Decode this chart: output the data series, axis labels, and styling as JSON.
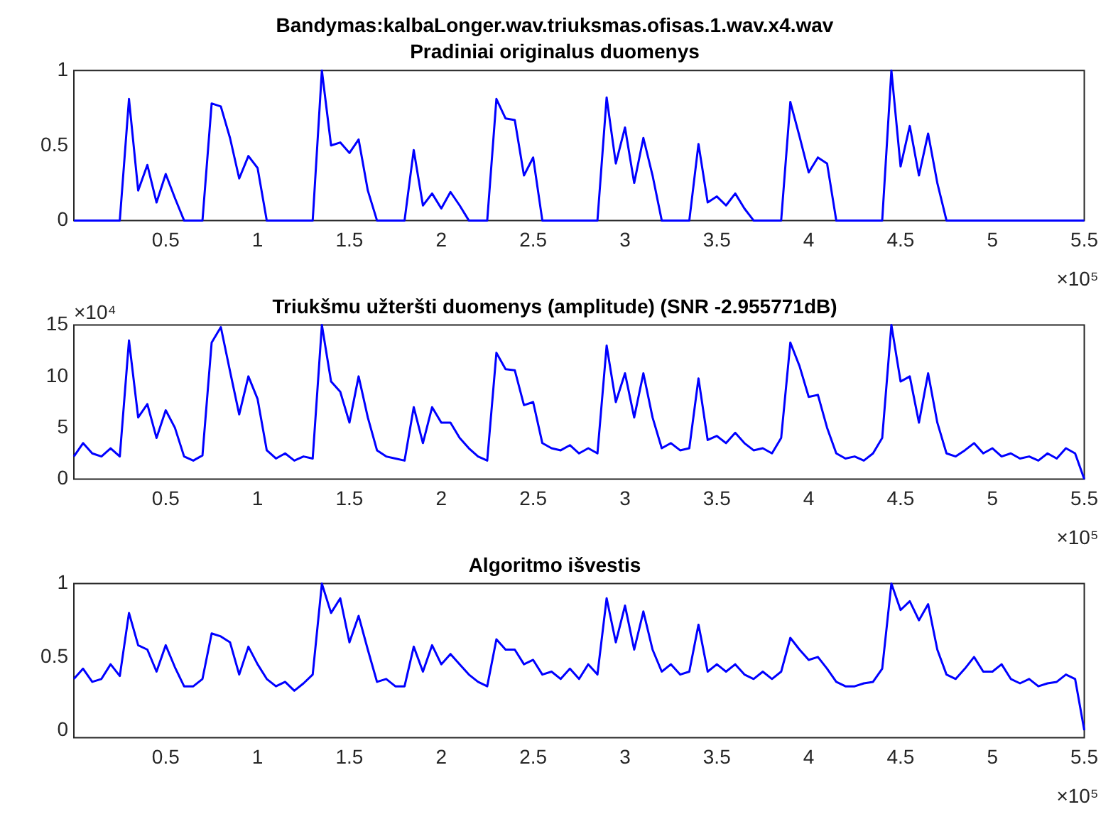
{
  "chart_data": [
    {
      "type": "line",
      "title": "Bandymas:kalbaLonger.wav.triuksmas.ofisas.1.wav.x4.wav",
      "subtitle": "Pradiniai originalus duomenys",
      "annotations": [
        "×10⁵"
      ],
      "x": [
        0,
        0.05,
        0.1,
        0.15,
        0.2,
        0.25,
        0.3,
        0.35,
        0.4,
        0.45,
        0.5,
        0.55,
        0.6,
        0.65,
        0.7,
        0.75,
        0.8,
        0.85,
        0.9,
        0.95,
        1,
        1.05,
        1.1,
        1.15,
        1.2,
        1.25,
        1.3,
        1.35,
        1.4,
        1.45,
        1.5,
        1.55,
        1.6,
        1.65,
        1.7,
        1.75,
        1.8,
        1.85,
        1.9,
        1.95,
        2,
        2.05,
        2.1,
        2.15,
        2.2,
        2.25,
        2.3,
        2.35,
        2.4,
        2.45,
        2.5,
        2.55,
        2.6,
        2.65,
        2.7,
        2.75,
        2.8,
        2.85,
        2.9,
        2.95,
        3,
        3.05,
        3.1,
        3.15,
        3.2,
        3.25,
        3.3,
        3.35,
        3.4,
        3.45,
        3.5,
        3.55,
        3.6,
        3.65,
        3.7,
        3.75,
        3.8,
        3.85,
        3.9,
        3.95,
        4,
        4.05,
        4.1,
        4.15,
        4.2,
        4.25,
        4.3,
        4.35,
        4.4,
        4.45,
        4.5,
        4.55,
        4.6,
        4.65,
        4.7,
        4.75,
        4.8,
        4.85,
        4.9,
        4.95,
        5,
        5.05,
        5.1,
        5.15,
        5.2,
        5.25,
        5.3,
        5.35,
        5.4,
        5.45,
        5.5
      ],
      "series": [
        {
          "color": "#0000ff",
          "values": [
            0,
            0,
            0,
            0,
            0,
            0,
            0.81,
            0.2,
            0.37,
            0.12,
            0.31,
            0.15,
            0,
            0,
            0,
            0.78,
            0.76,
            0.55,
            0.28,
            0.43,
            0.35,
            0,
            0,
            0,
            0,
            0,
            0,
            1,
            0.5,
            0.52,
            0.45,
            0.54,
            0.2,
            0,
            0,
            0,
            0,
            0.47,
            0.1,
            0.18,
            0.08,
            0.19,
            0.1,
            0,
            0,
            0,
            0.81,
            0.68,
            0.67,
            0.3,
            0.42,
            0,
            0,
            0,
            0,
            0,
            0,
            0,
            0.82,
            0.38,
            0.62,
            0.25,
            0.55,
            0.3,
            0,
            0,
            0,
            0,
            0.51,
            0.12,
            0.16,
            0.1,
            0.18,
            0.08,
            0,
            0,
            0,
            0,
            0.79,
            0.56,
            0.32,
            0.42,
            0.38,
            0,
            0,
            0,
            0,
            0,
            0,
            1,
            0.36,
            0.63,
            0.3,
            0.58,
            0.25,
            0,
            0,
            0,
            0,
            0,
            0,
            0,
            0,
            0,
            0,
            0,
            0,
            0,
            0,
            0,
            0
          ]
        }
      ],
      "xlim": [
        0,
        5.5
      ],
      "xticks": [
        0.5,
        1,
        1.5,
        2,
        2.5,
        3,
        3.5,
        4,
        4.5,
        5,
        5.5
      ],
      "ylim": [
        0,
        1
      ],
      "yticks": [
        0,
        0.5,
        1
      ]
    },
    {
      "type": "line",
      "title": "Triukšmu užteršti duomenys (amplitude) (SNR -2.955771dB)",
      "annotations": [
        "×10⁴",
        "×10⁵"
      ],
      "x": [
        0,
        0.05,
        0.1,
        0.15,
        0.2,
        0.25,
        0.3,
        0.35,
        0.4,
        0.45,
        0.5,
        0.55,
        0.6,
        0.65,
        0.7,
        0.75,
        0.8,
        0.85,
        0.9,
        0.95,
        1,
        1.05,
        1.1,
        1.15,
        1.2,
        1.25,
        1.3,
        1.35,
        1.4,
        1.45,
        1.5,
        1.55,
        1.6,
        1.65,
        1.7,
        1.75,
        1.8,
        1.85,
        1.9,
        1.95,
        2,
        2.05,
        2.1,
        2.15,
        2.2,
        2.25,
        2.3,
        2.35,
        2.4,
        2.45,
        2.5,
        2.55,
        2.6,
        2.65,
        2.7,
        2.75,
        2.8,
        2.85,
        2.9,
        2.95,
        3,
        3.05,
        3.1,
        3.15,
        3.2,
        3.25,
        3.3,
        3.35,
        3.4,
        3.45,
        3.5,
        3.55,
        3.6,
        3.65,
        3.7,
        3.75,
        3.8,
        3.85,
        3.9,
        3.95,
        4,
        4.05,
        4.1,
        4.15,
        4.2,
        4.25,
        4.3,
        4.35,
        4.4,
        4.45,
        4.5,
        4.55,
        4.6,
        4.65,
        4.7,
        4.75,
        4.8,
        4.85,
        4.9,
        4.95,
        5,
        5.05,
        5.1,
        5.15,
        5.2,
        5.25,
        5.3,
        5.35,
        5.4,
        5.45,
        5.5
      ],
      "series": [
        {
          "color": "#0000ff",
          "values": [
            2.2,
            3.5,
            2.5,
            2.2,
            3,
            2.2,
            13.5,
            6,
            7.3,
            4,
            6.7,
            5,
            2.2,
            1.8,
            2.3,
            13.3,
            14.8,
            10.5,
            6.3,
            10,
            7.8,
            2.8,
            2,
            2.5,
            1.8,
            2.2,
            2,
            15,
            9.5,
            8.5,
            5.5,
            10,
            6,
            2.8,
            2.2,
            2,
            1.8,
            7,
            3.5,
            7,
            5.5,
            5.5,
            4,
            3,
            2.2,
            1.8,
            12.3,
            10.7,
            10.6,
            7.2,
            7.5,
            3.5,
            3,
            2.8,
            3.3,
            2.5,
            3,
            2.5,
            13,
            7.5,
            10.3,
            6,
            10.3,
            6,
            3,
            3.5,
            2.8,
            3,
            9.8,
            3.8,
            4.2,
            3.5,
            4.5,
            3.5,
            2.8,
            3,
            2.5,
            4,
            13.3,
            11,
            8,
            8.2,
            5,
            2.5,
            2,
            2.2,
            1.8,
            2.5,
            4,
            15,
            9.5,
            10,
            5.5,
            10.3,
            5.5,
            2.5,
            2.2,
            2.8,
            3.5,
            2.5,
            3,
            2.2,
            2.5,
            2,
            2.2,
            1.8,
            2.5,
            2,
            3,
            2.5,
            0
          ]
        }
      ],
      "xlim": [
        0,
        5.5
      ],
      "xticks": [
        0.5,
        1,
        1.5,
        2,
        2.5,
        3,
        3.5,
        4,
        4.5,
        5,
        5.5
      ],
      "ylim": [
        0,
        15
      ],
      "yticks": [
        0,
        5,
        10,
        15
      ]
    },
    {
      "type": "line",
      "title": "Algoritmo išvestis",
      "annotations": [
        "×10⁵"
      ],
      "x": [
        0,
        0.05,
        0.1,
        0.15,
        0.2,
        0.25,
        0.3,
        0.35,
        0.4,
        0.45,
        0.5,
        0.55,
        0.6,
        0.65,
        0.7,
        0.75,
        0.8,
        0.85,
        0.9,
        0.95,
        1,
        1.05,
        1.1,
        1.15,
        1.2,
        1.25,
        1.3,
        1.35,
        1.4,
        1.45,
        1.5,
        1.55,
        1.6,
        1.65,
        1.7,
        1.75,
        1.8,
        1.85,
        1.9,
        1.95,
        2,
        2.05,
        2.1,
        2.15,
        2.2,
        2.25,
        2.3,
        2.35,
        2.4,
        2.45,
        2.5,
        2.55,
        2.6,
        2.65,
        2.7,
        2.75,
        2.8,
        2.85,
        2.9,
        2.95,
        3,
        3.05,
        3.1,
        3.15,
        3.2,
        3.25,
        3.3,
        3.35,
        3.4,
        3.45,
        3.5,
        3.55,
        3.6,
        3.65,
        3.7,
        3.75,
        3.8,
        3.85,
        3.9,
        3.95,
        4,
        4.05,
        4.1,
        4.15,
        4.2,
        4.25,
        4.3,
        4.35,
        4.4,
        4.45,
        4.5,
        4.55,
        4.6,
        4.65,
        4.7,
        4.75,
        4.8,
        4.85,
        4.9,
        4.95,
        5,
        5.05,
        5.1,
        5.15,
        5.2,
        5.25,
        5.3,
        5.35,
        5.4,
        5.45,
        5.5
      ],
      "series": [
        {
          "color": "#0000ff",
          "values": [
            0.35,
            0.42,
            0.33,
            0.35,
            0.45,
            0.37,
            0.8,
            0.58,
            0.55,
            0.4,
            0.58,
            0.43,
            0.3,
            0.3,
            0.35,
            0.66,
            0.64,
            0.6,
            0.38,
            0.57,
            0.45,
            0.35,
            0.3,
            0.33,
            0.27,
            0.32,
            0.38,
            1,
            0.8,
            0.9,
            0.6,
            0.78,
            0.55,
            0.33,
            0.35,
            0.3,
            0.3,
            0.57,
            0.4,
            0.58,
            0.45,
            0.52,
            0.45,
            0.38,
            0.33,
            0.3,
            0.62,
            0.55,
            0.55,
            0.45,
            0.48,
            0.38,
            0.4,
            0.35,
            0.42,
            0.35,
            0.45,
            0.38,
            0.9,
            0.6,
            0.85,
            0.55,
            0.81,
            0.55,
            0.4,
            0.45,
            0.38,
            0.4,
            0.72,
            0.4,
            0.45,
            0.4,
            0.45,
            0.38,
            0.35,
            0.4,
            0.35,
            0.4,
            0.63,
            0.55,
            0.48,
            0.5,
            0.42,
            0.33,
            0.3,
            0.3,
            0.32,
            0.33,
            0.42,
            1,
            0.82,
            0.88,
            0.75,
            0.86,
            0.55,
            0.38,
            0.35,
            0.42,
            0.5,
            0.4,
            0.4,
            0.45,
            0.35,
            0.32,
            0.35,
            0.3,
            0.32,
            0.33,
            0.38,
            0.35,
            0
          ]
        }
      ],
      "xlim": [
        0,
        5.5
      ],
      "xticks": [
        0.5,
        1,
        1.5,
        2,
        2.5,
        3,
        3.5,
        4,
        4.5,
        5,
        5.5
      ],
      "ylim": [
        -0.05,
        1
      ],
      "yticks": [
        0,
        0.5,
        1
      ]
    }
  ]
}
